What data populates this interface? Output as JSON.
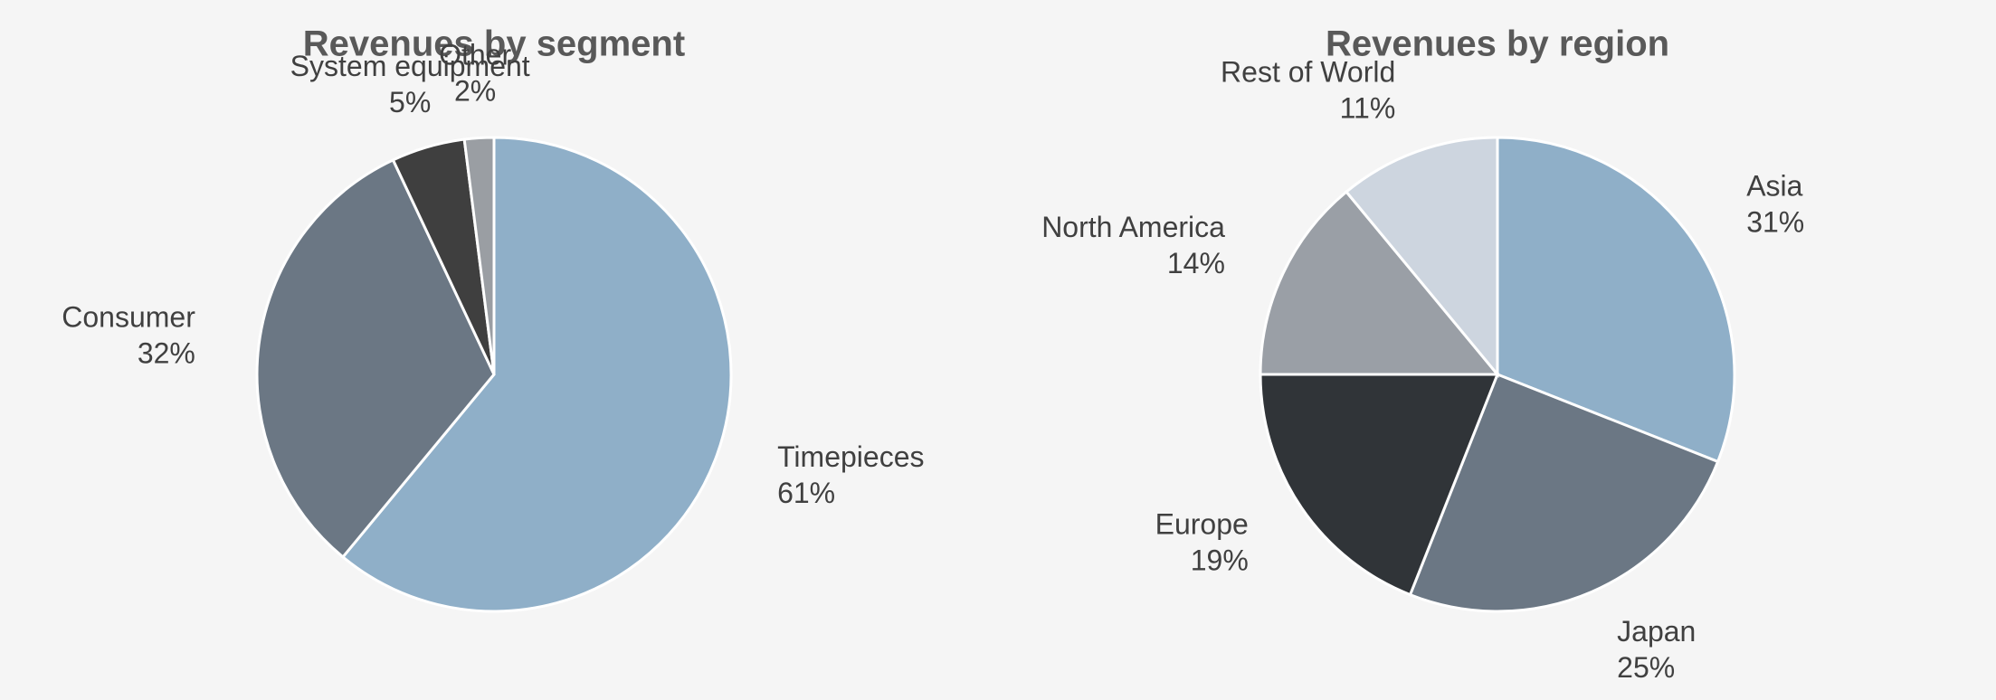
{
  "chart_data": [
    {
      "type": "pie",
      "title": "Revenues by segment",
      "categories": [
        "Timepieces",
        "Consumer",
        "System equipment",
        "Other"
      ],
      "values": [
        61,
        32,
        5,
        2
      ],
      "value_labels": [
        "61%",
        "32%",
        "5%",
        "2%"
      ],
      "colors": [
        "#8fafc8",
        "#6b7784",
        "#3f3f3f",
        "#9a9ea3"
      ]
    },
    {
      "type": "pie",
      "title": "Revenues by region",
      "categories": [
        "Asia",
        "Japan",
        "Europe",
        "North America",
        "Rest of World"
      ],
      "values": [
        31,
        25,
        19,
        14,
        11
      ],
      "value_labels": [
        "31%",
        "25%",
        "19%",
        "14%",
        "11%"
      ],
      "colors": [
        "#8fafc8",
        "#6b7784",
        "#303438",
        "#9a9fa6",
        "#cdd5df"
      ]
    }
  ]
}
